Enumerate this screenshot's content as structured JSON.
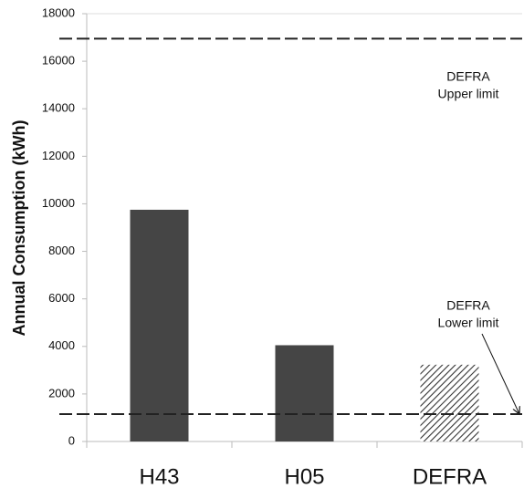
{
  "chart_data": {
    "type": "bar",
    "y_label": "Annual Consumption (kWh)",
    "categories": [
      "H43",
      "H05",
      "DEFRA"
    ],
    "values": [
      9750,
      4050,
      3230
    ],
    "color": "#454545",
    "hatched": [
      false,
      false,
      true
    ],
    "ylim": [
      0,
      18000
    ],
    "yticks": [
      0,
      2000,
      4000,
      6000,
      8000,
      10000,
      12000,
      14000,
      16000,
      18000
    ],
    "reference_lines": [
      16950,
      1150
    ],
    "annotations": [
      {
        "lines": [
          "DEFRA",
          "Upper limit"
        ]
      },
      {
        "lines": [
          "DEFRA",
          "Lower limit"
        ]
      }
    ]
  }
}
